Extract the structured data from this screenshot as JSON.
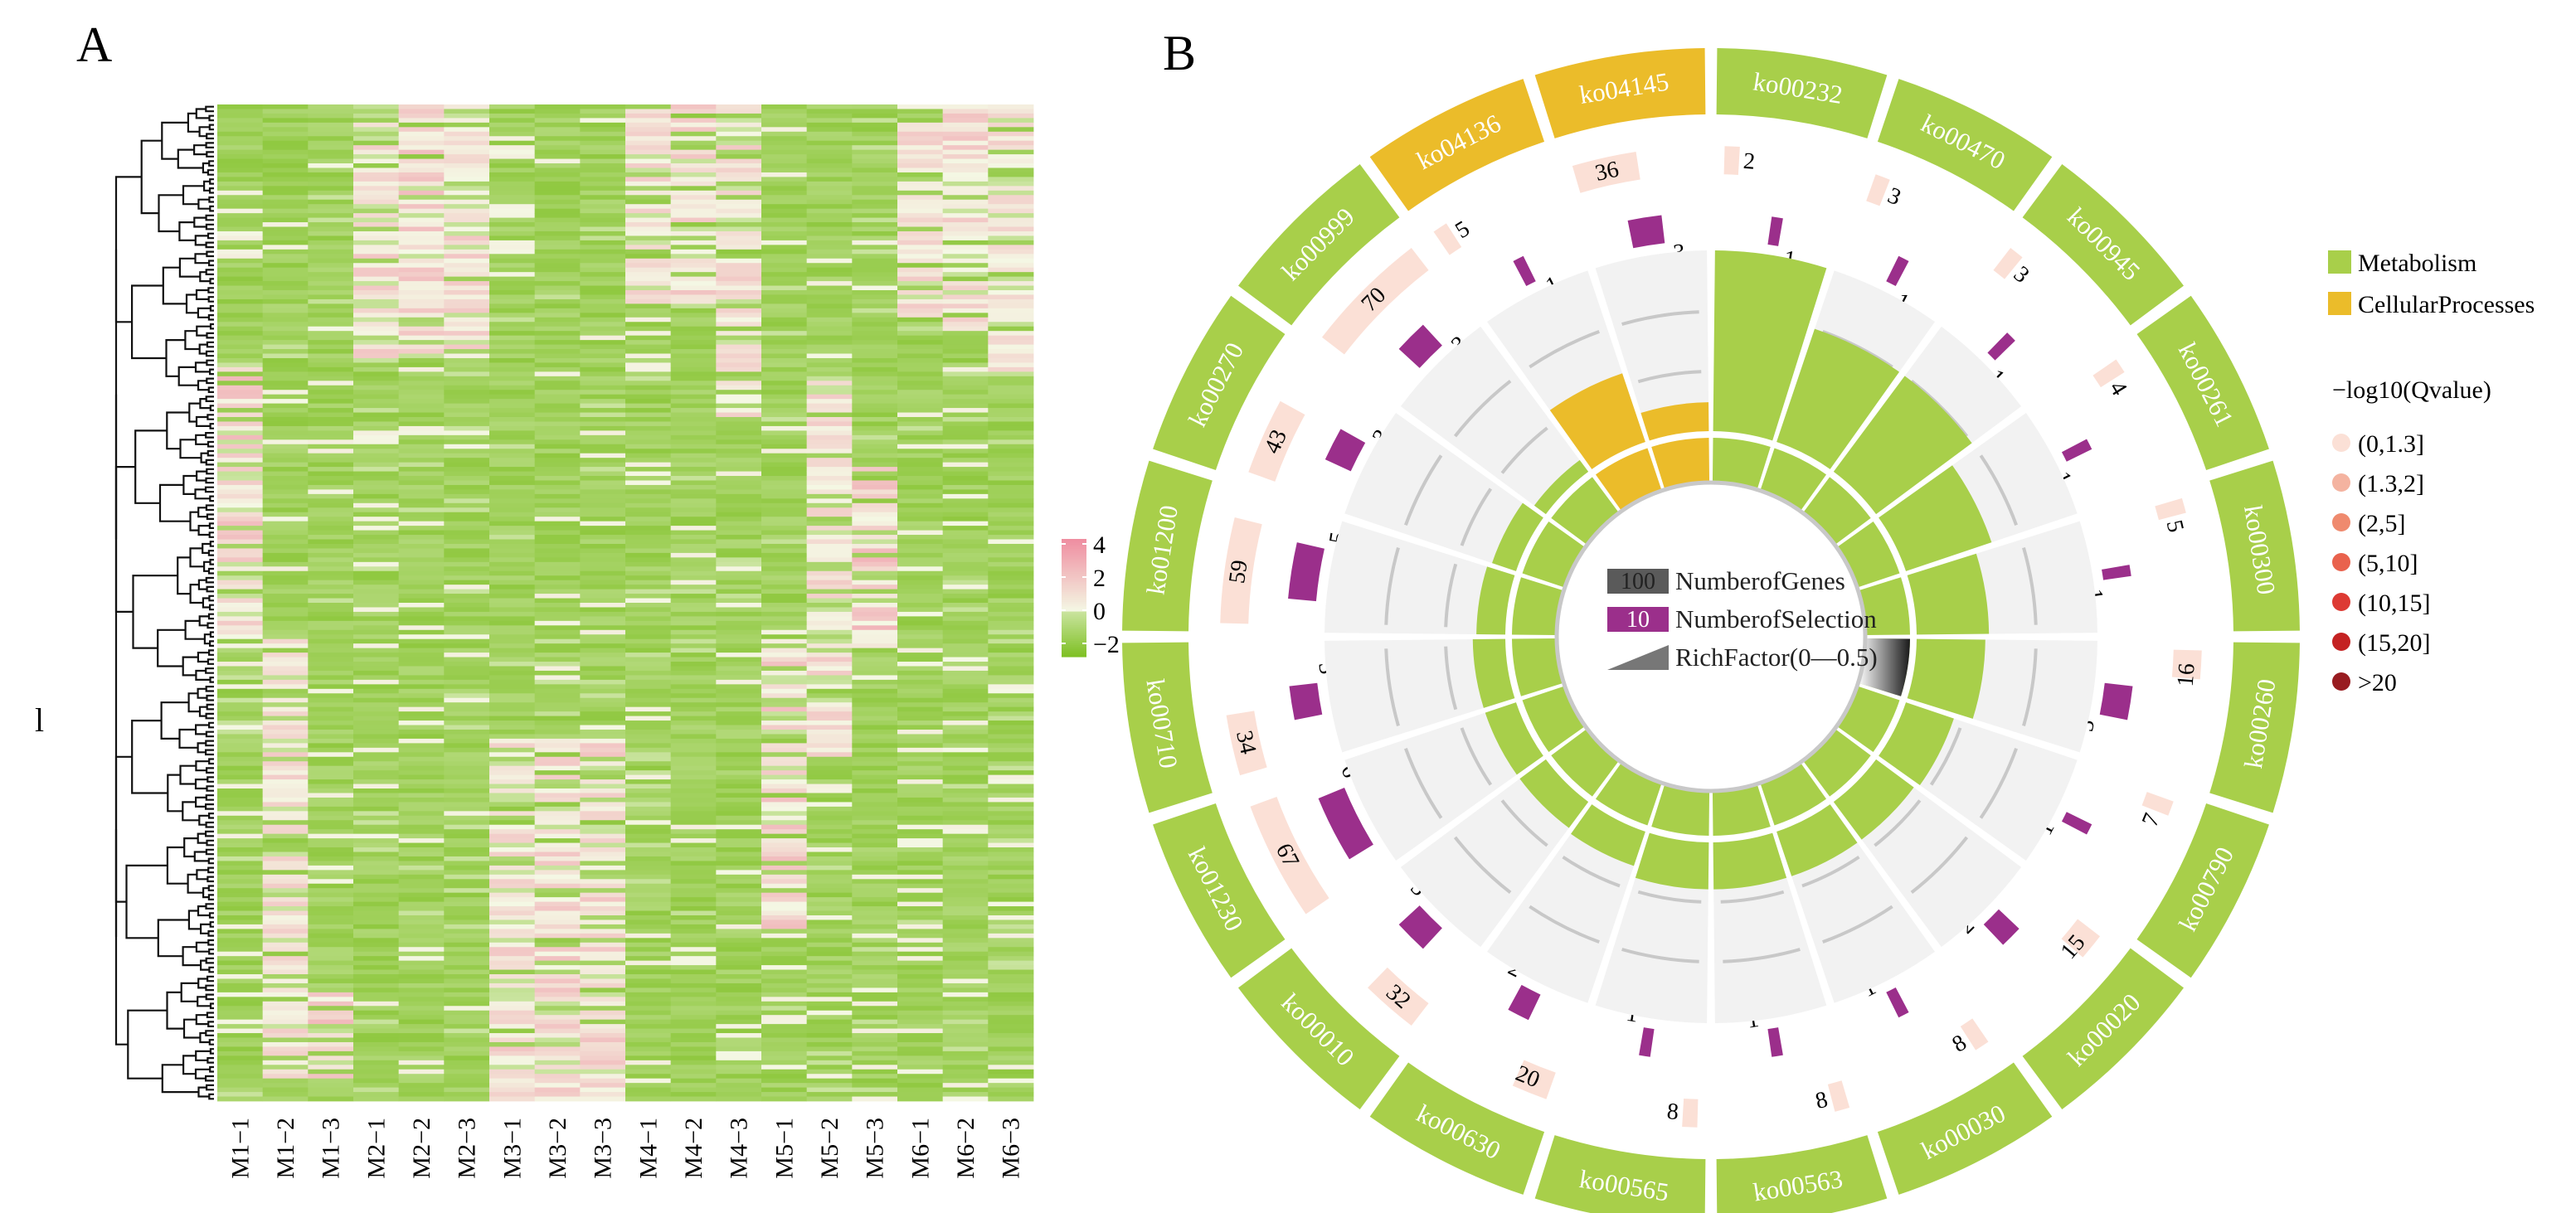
{
  "panels": {
    "a_label": "A",
    "b_label": "B"
  },
  "colors": {
    "heat_low": "#7cbf20",
    "heat_mid": "#f4f8e4",
    "heat_high": "#ef8ea1",
    "metabolism": "#a8cf4a",
    "cellular": "#ebbc2a",
    "selection": "#9b2f8b",
    "genes_bg": "#fbe0d6",
    "track_bg": "#f2f2f2"
  },
  "chart_data": [
    {
      "type": "heatmap",
      "title": "",
      "row_label": "l",
      "columns": [
        "M1−1",
        "M1−2",
        "M1−3",
        "M2−1",
        "M2−2",
        "M2−3",
        "M3−1",
        "M3−2",
        "M3−3",
        "M4−1",
        "M4−2",
        "M4−3",
        "M5−1",
        "M5−2",
        "M5−3",
        "M6−1",
        "M6−2",
        "M6−3"
      ],
      "row_count": 220,
      "value_range": [
        -2.8,
        4.3
      ],
      "colorbar_ticks": [
        4,
        2,
        0,
        -2
      ],
      "colorbar_tick_labels": [
        "4",
        "2",
        "0",
        "−2"
      ],
      "high_blocks": [
        {
          "col": 0,
          "rows": [
            56,
            118
          ],
          "strength": 0.7
        },
        {
          "col": 1,
          "rows": [
            118,
            215
          ],
          "strength": 0.5
        },
        {
          "col": 2,
          "rows": [
            195,
            215
          ],
          "strength": 0.9
        },
        {
          "col": 3,
          "rows": [
            0,
            56
          ],
          "strength": 0.55
        },
        {
          "col": 4,
          "rows": [
            0,
            56
          ],
          "strength": 0.65
        },
        {
          "col": 5,
          "rows": [
            0,
            56
          ],
          "strength": 0.55
        },
        {
          "col": 6,
          "rows": [
            140,
            220
          ],
          "strength": 0.55
        },
        {
          "col": 7,
          "rows": [
            140,
            220
          ],
          "strength": 0.6
        },
        {
          "col": 8,
          "rows": [
            140,
            220
          ],
          "strength": 0.6
        },
        {
          "col": 9,
          "rows": [
            0,
            45
          ],
          "strength": 0.5
        },
        {
          "col": 10,
          "rows": [
            0,
            45
          ],
          "strength": 0.6
        },
        {
          "col": 11,
          "rows": [
            0,
            70
          ],
          "strength": 0.55
        },
        {
          "col": 12,
          "rows": [
            118,
            182
          ],
          "strength": 0.65
        },
        {
          "col": 13,
          "rows": [
            60,
            145
          ],
          "strength": 0.55
        },
        {
          "col": 14,
          "rows": [
            80,
            120
          ],
          "strength": 0.85
        },
        {
          "col": 15,
          "rows": [
            0,
            50
          ],
          "strength": 0.5
        },
        {
          "col": 16,
          "rows": [
            0,
            50
          ],
          "strength": 0.6
        },
        {
          "col": 17,
          "rows": [
            0,
            60
          ],
          "strength": 0.45
        }
      ]
    },
    {
      "type": "circular-enrichment",
      "title": "",
      "categories": [
        "ko00232",
        "ko00470",
        "ko00945",
        "ko00261",
        "ko00300",
        "ko00260",
        "ko00790",
        "ko00020",
        "ko00030",
        "ko00563",
        "ko00565",
        "ko00630",
        "ko00010",
        "ko01230",
        "ko00710",
        "ko01200",
        "ko00270",
        "ko00999",
        "ko04136",
        "ko04145"
      ],
      "class": [
        "Metabolism",
        "Metabolism",
        "Metabolism",
        "Metabolism",
        "Metabolism",
        "Metabolism",
        "Metabolism",
        "Metabolism",
        "Metabolism",
        "Metabolism",
        "Metabolism",
        "Metabolism",
        "Metabolism",
        "Metabolism",
        "Metabolism",
        "Metabolism",
        "Metabolism",
        "Metabolism",
        "CellularProcesses",
        "CellularProcesses"
      ],
      "number_of_genes": [
        2,
        3,
        3,
        4,
        5,
        16,
        7,
        15,
        8,
        8,
        8,
        20,
        32,
        67,
        34,
        59,
        43,
        70,
        5,
        36
      ],
      "number_of_selection": [
        1,
        1,
        1,
        1,
        1,
        3,
        1,
        2,
        1,
        1,
        1,
        2,
        3,
        6,
        3,
        5,
        3,
        3,
        1,
        3
      ],
      "rich_factor": [
        0.5,
        0.33,
        0.33,
        0.25,
        0.2,
        0.19,
        0.14,
        0.13,
        0.13,
        0.13,
        0.13,
        0.1,
        0.09,
        0.09,
        0.09,
        0.08,
        0.07,
        0.04,
        0.2,
        0.08
      ],
      "neg_log10_qvalue_bin": "(0,1.3]",
      "highlight_dark_segment": "ko00260",
      "legend": {
        "classes": [
          "Metabolism",
          "CellularProcesses"
        ],
        "qvalue_title": "−log10(Qvalue)",
        "qvalue_bins": [
          "(0,1.3]",
          "(1.3,2]",
          "(2,5]",
          "(5,10]",
          "(10,15]",
          "(15,20]",
          ">20"
        ],
        "qvalue_colors": [
          "#fbe0d6",
          "#f4b3a0",
          "#ef8a6e",
          "#e9624d",
          "#dd3a33",
          "#c42222",
          "#981c20"
        ]
      },
      "center_legend": [
        {
          "key": "100",
          "label": "NumberofGenes"
        },
        {
          "key": "10",
          "label": "NumberofSelection"
        },
        {
          "key": "",
          "label": "RichFactor(0—0.5)"
        }
      ]
    }
  ]
}
